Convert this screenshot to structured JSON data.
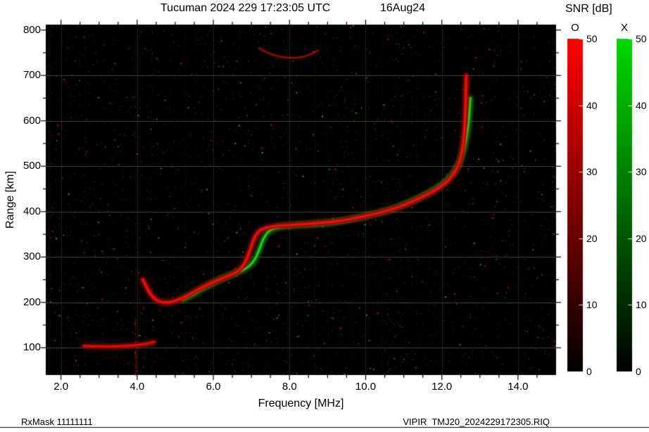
{
  "chart_data": {
    "type": "heatmap",
    "title": "Tucuman 2024 229 17:23:05 UTC",
    "date_label": "16Aug24",
    "xlabel": "Frequency [MHz]",
    "ylabel": "Range [km]",
    "xlim": [
      1.6,
      15.0
    ],
    "ylim": [
      40,
      812
    ],
    "background": "#000000",
    "x_ticks": {
      "values": [
        2,
        4,
        6,
        8,
        10,
        12,
        14
      ],
      "labels": [
        "2.0",
        "4.0",
        "6.0",
        "8.0",
        "10.0",
        "12.0",
        "14.0"
      ],
      "minor_step": 0.5
    },
    "y_ticks": {
      "values": [
        100,
        200,
        300,
        400,
        500,
        600,
        700,
        800
      ],
      "labels": [
        "100",
        "200",
        "300",
        "400",
        "500",
        "600",
        "700",
        "800"
      ],
      "minor_step": 50
    },
    "grid": {
      "x_values": [
        2,
        4,
        6,
        8,
        10,
        12,
        14
      ],
      "y_values": [
        100,
        200,
        300,
        400,
        500,
        600,
        700
      ],
      "color": "#454545"
    },
    "colorbar": {
      "title": "SNR [dB]",
      "range": [
        0,
        50
      ],
      "ticks": [
        0,
        10,
        20,
        30,
        40,
        50
      ],
      "tick_labels": [
        "0",
        "10",
        "20",
        "30",
        "40",
        "50"
      ],
      "bars": [
        {
          "label": "O",
          "mode": "O-mode",
          "color": "#ff0000"
        },
        {
          "label": "X",
          "mode": "X-mode",
          "color": "#00d800"
        }
      ]
    },
    "series": [
      {
        "name": "O-mode Es layer trace",
        "color": "#e81010",
        "halo": "#8a0500",
        "width": 2.2,
        "points": [
          [
            2.6,
            104
          ],
          [
            2.9,
            103
          ],
          [
            3.3,
            103
          ],
          [
            3.7,
            104
          ],
          [
            4.0,
            106
          ],
          [
            4.25,
            109
          ],
          [
            4.45,
            113
          ]
        ]
      },
      {
        "name": "X-mode F trace",
        "color": "#1fd01f",
        "halo": "#0a520a",
        "width": 3.0,
        "points": [
          [
            5.2,
            206
          ],
          [
            5.4,
            214
          ],
          [
            5.6,
            224
          ],
          [
            5.8,
            234
          ],
          [
            6.0,
            243
          ],
          [
            6.2,
            251
          ],
          [
            6.4,
            258
          ],
          [
            6.6,
            265
          ],
          [
            6.8,
            272
          ],
          [
            6.95,
            280
          ],
          [
            7.1,
            295
          ],
          [
            7.2,
            315
          ],
          [
            7.3,
            338
          ],
          [
            7.4,
            352
          ],
          [
            7.5,
            360
          ],
          [
            7.7,
            366
          ],
          [
            8.0,
            369
          ],
          [
            8.4,
            371
          ],
          [
            8.9,
            374
          ],
          [
            9.4,
            379
          ],
          [
            9.9,
            388
          ],
          [
            10.4,
            398
          ],
          [
            10.9,
            411
          ],
          [
            11.3,
            426
          ],
          [
            11.7,
            443
          ],
          [
            12.0,
            459
          ],
          [
            12.25,
            478
          ],
          [
            12.45,
            503
          ],
          [
            12.58,
            535
          ],
          [
            12.67,
            572
          ],
          [
            12.72,
            610
          ],
          [
            12.75,
            650
          ]
        ]
      },
      {
        "name": "O-mode F trace",
        "color": "#e81010",
        "halo": "#8a0500",
        "width": 3.2,
        "points": [
          [
            4.15,
            250
          ],
          [
            4.25,
            232
          ],
          [
            4.4,
            212
          ],
          [
            4.55,
            202
          ],
          [
            4.75,
            199
          ],
          [
            4.95,
            202
          ],
          [
            5.15,
            208
          ],
          [
            5.35,
            216
          ],
          [
            5.55,
            226
          ],
          [
            5.75,
            235
          ],
          [
            5.95,
            243
          ],
          [
            6.15,
            250
          ],
          [
            6.35,
            257
          ],
          [
            6.55,
            264
          ],
          [
            6.7,
            272
          ],
          [
            6.8,
            283
          ],
          [
            6.9,
            300
          ],
          [
            7.0,
            325
          ],
          [
            7.1,
            347
          ],
          [
            7.2,
            358
          ],
          [
            7.35,
            364
          ],
          [
            7.6,
            368
          ],
          [
            7.9,
            370
          ],
          [
            8.3,
            372
          ],
          [
            8.8,
            375
          ],
          [
            9.3,
            379
          ],
          [
            9.8,
            387
          ],
          [
            10.3,
            396
          ],
          [
            10.8,
            408
          ],
          [
            11.2,
            421
          ],
          [
            11.6,
            437
          ],
          [
            11.95,
            453
          ],
          [
            12.2,
            471
          ],
          [
            12.38,
            492
          ],
          [
            12.5,
            518
          ],
          [
            12.56,
            548
          ],
          [
            12.6,
            585
          ],
          [
            12.62,
            625
          ],
          [
            12.63,
            665
          ],
          [
            12.64,
            700
          ]
        ]
      },
      {
        "name": "O-mode second hop echo",
        "color": "#b8160c",
        "halo": null,
        "width": 2.3,
        "points": [
          [
            7.2,
            760
          ],
          [
            7.45,
            748
          ],
          [
            7.8,
            740
          ],
          [
            8.2,
            738
          ],
          [
            8.5,
            744
          ],
          [
            8.75,
            755
          ]
        ]
      }
    ],
    "annotations": {
      "bottom_left": "RxMask 11111111",
      "bottom_right": "VIPIR  TMJ20_2024229172305.RIQ"
    }
  }
}
